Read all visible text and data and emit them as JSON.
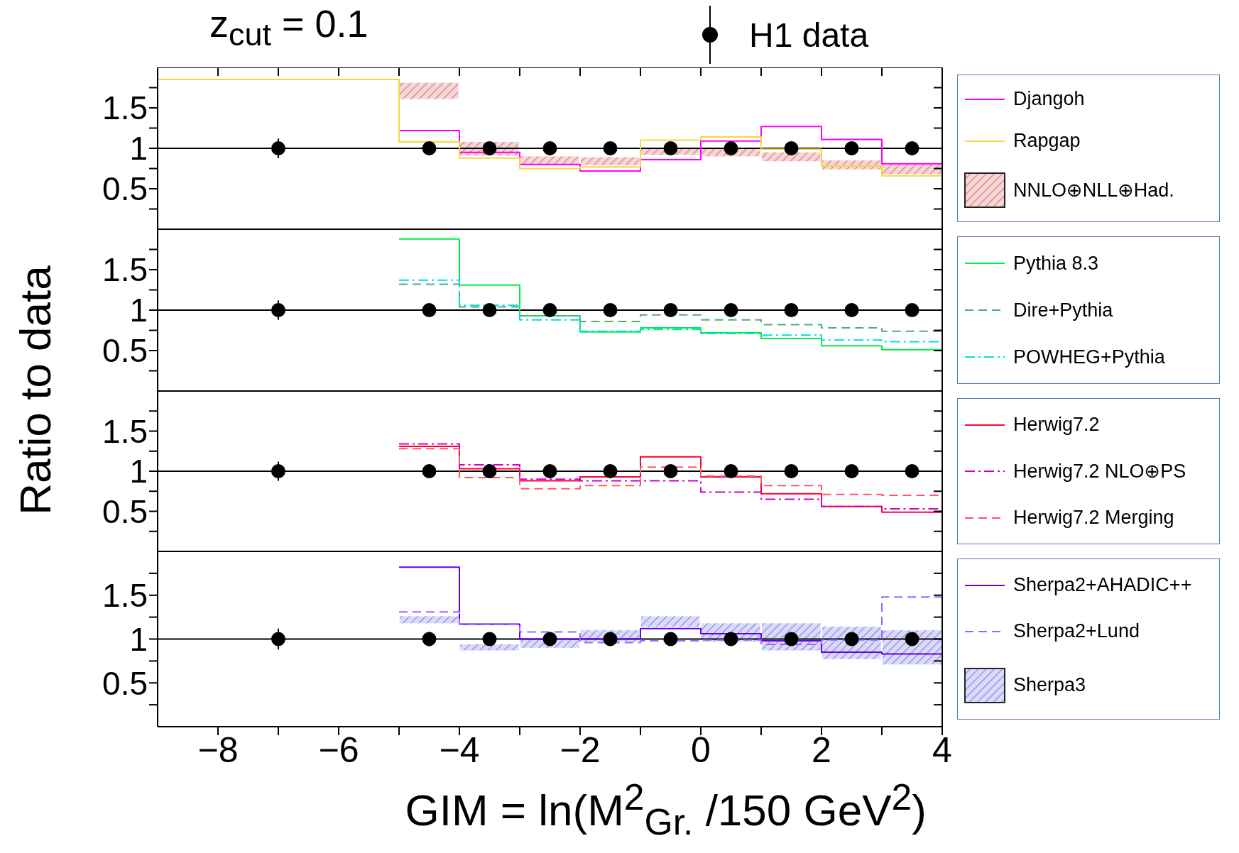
{
  "chart_data": [
    {
      "type": "step",
      "title": "z$_{cut}$ = 0.1",
      "ylabel": "Ratio to data",
      "xlim": [
        -9,
        4
      ],
      "ylim": [
        0,
        2
      ],
      "xticks": [
        -8,
        {
          "value": -7,
          "label": null
        },
        -6,
        {
          "value": -5,
          "label": null
        },
        -4,
        {
          "value": -3,
          "label": null
        },
        -2,
        {
          "value": -1,
          "label": null
        },
        0,
        {
          "value": 1,
          "label": null
        },
        2,
        {
          "value": 3,
          "label": null
        },
        4
      ],
      "yticks": [
        {
          "value": 0.25,
          "label": null
        },
        0.5,
        {
          "value": 0.75,
          "label": null
        },
        1,
        {
          "value": 1.25,
          "label": null
        },
        1.5,
        {
          "value": 1.75,
          "label": null
        }
      ],
      "tick_labels": "y",
      "legend": "right",
      "ref_lines": [
        {
          "axis": "y",
          "value": 1,
          "color": "#000000"
        }
      ],
      "series": [
        {
          "name": "Djangoh",
          "color": "#ff00ff",
          "x": [
            -5,
            -4,
            -3,
            -2,
            -1,
            0,
            1,
            2,
            3,
            4
          ],
          "values": [
            1.22,
            0.95,
            0.8,
            0.72,
            0.86,
            1.09,
            1.27,
            1.11,
            0.81,
            0.81
          ]
        },
        {
          "name": "Rapgap",
          "color": "#f5d742",
          "x": [
            -9,
            -5,
            -4,
            -3,
            -2,
            -1,
            0,
            1,
            2,
            3,
            4
          ],
          "values": [
            1.85,
            1.08,
            0.88,
            0.75,
            0.77,
            1.1,
            1.14,
            0.99,
            0.78,
            0.66,
            0.66
          ]
        },
        {
          "name": "NNLO⊕NLL⊕Had.",
          "type": "bar",
          "color": "#e07a7a",
          "x": [
            -4.5,
            -3.5,
            -2.5,
            -1.5,
            -0.5,
            0.5,
            1.5,
            2.5,
            3.5
          ],
          "base": [
            1.61,
            0.91,
            0.79,
            0.79,
            0.92,
            0.9,
            0.84,
            0.74,
            0.68
          ],
          "values": [
            0.2,
            0.17,
            0.11,
            0.1,
            0.08,
            0.09,
            0.11,
            0.11,
            0.13
          ]
        },
        {
          "name": "H1 data",
          "type": "scatter",
          "marker": "circle",
          "color": "#000000",
          "x": [
            -7,
            -4.5,
            -3.5,
            -2.5,
            -1.5,
            -0.5,
            0.5,
            1.5,
            2.5,
            3.5
          ],
          "values": [
            1,
            1,
            1,
            1,
            1,
            1,
            1,
            1,
            1,
            1
          ],
          "errors": [
            0.12,
            0.08,
            null,
            null,
            null,
            null,
            null,
            null,
            null,
            null
          ]
        }
      ]
    },
    {
      "type": "step",
      "xlim": [
        -9,
        4
      ],
      "ylim": [
        0,
        2
      ],
      "xticks": [
        -8,
        {
          "value": -7,
          "label": null
        },
        -6,
        {
          "value": -5,
          "label": null
        },
        -4,
        {
          "value": -3,
          "label": null
        },
        -2,
        {
          "value": -1,
          "label": null
        },
        0,
        {
          "value": 1,
          "label": null
        },
        2,
        {
          "value": 3,
          "label": null
        },
        4
      ],
      "yticks": [
        {
          "value": 0.25,
          "label": null
        },
        0.5,
        {
          "value": 0.75,
          "label": null
        },
        1,
        {
          "value": 1.25,
          "label": null
        },
        1.5,
        {
          "value": 1.75,
          "label": null
        }
      ],
      "tick_labels": "y",
      "legend": "right",
      "ref_lines": [
        {
          "axis": "y",
          "value": 1,
          "color": "#000000"
        }
      ],
      "series": [
        {
          "name": "Pythia 8.3",
          "color": "#00ee44",
          "x": [
            -5,
            -4,
            -3,
            -2,
            -1,
            0,
            1,
            2,
            3,
            4
          ],
          "values": [
            1.88,
            1.31,
            0.93,
            0.73,
            0.78,
            0.72,
            0.65,
            0.56,
            0.51,
            0.51
          ]
        },
        {
          "name": "Dire+Pythia",
          "color": "#55aa77",
          "line_style": "dashed",
          "x": [
            -5,
            -4,
            -3,
            -2,
            -1,
            0,
            1,
            2,
            3,
            4
          ],
          "values": [
            1.32,
            1.04,
            0.93,
            0.86,
            0.94,
            0.88,
            0.82,
            0.78,
            0.74,
            0.74
          ]
        },
        {
          "name": "POWHEG+Pythia",
          "color": "#00dddd",
          "line_style": "dashdot",
          "x": [
            -5,
            -4,
            -3,
            -2,
            -1,
            0,
            1,
            2,
            3,
            4
          ],
          "values": [
            1.37,
            1.06,
            0.88,
            0.74,
            0.76,
            0.71,
            0.69,
            0.63,
            0.61,
            0.61
          ]
        },
        {
          "type": "scatter",
          "marker": "circle",
          "color": "#000000",
          "x": [
            -7,
            -4.5,
            -3.5,
            -2.5,
            -1.5,
            -0.5,
            0.5,
            1.5,
            2.5,
            3.5
          ],
          "values": [
            1,
            1,
            1,
            1,
            1,
            1,
            1,
            1,
            1,
            1
          ],
          "errors": [
            0.12,
            0.08,
            null,
            null,
            null,
            null,
            null,
            null,
            null,
            null
          ]
        }
      ]
    },
    {
      "type": "step",
      "xlim": [
        -9,
        4
      ],
      "ylim": [
        0,
        2
      ],
      "xticks": [
        -8,
        {
          "value": -7,
          "label": null
        },
        -6,
        {
          "value": -5,
          "label": null
        },
        -4,
        {
          "value": -3,
          "label": null
        },
        -2,
        {
          "value": -1,
          "label": null
        },
        0,
        {
          "value": 1,
          "label": null
        },
        2,
        {
          "value": 3,
          "label": null
        },
        4
      ],
      "yticks": [
        {
          "value": 0.25,
          "label": null
        },
        0.5,
        {
          "value": 0.75,
          "label": null
        },
        1,
        {
          "value": 1.25,
          "label": null
        },
        1.5,
        {
          "value": 1.75,
          "label": null
        }
      ],
      "tick_labels": "y",
      "legend": "right",
      "ref_lines": [
        {
          "axis": "y",
          "value": 1,
          "color": "#000000"
        }
      ],
      "series": [
        {
          "name": "Herwig7.2",
          "color": "#ff0033",
          "x": [
            -5,
            -4,
            -3,
            -2,
            -1,
            0,
            1,
            2,
            3,
            4
          ],
          "values": [
            1.31,
            1.03,
            0.88,
            0.93,
            1.18,
            0.93,
            0.72,
            0.56,
            0.49,
            0.49
          ]
        },
        {
          "name": "Herwig7.2 NLO⊕PS",
          "color": "#cc00cc",
          "line_style": "dashdot",
          "x": [
            -5,
            -4,
            -3,
            -2,
            -1,
            0,
            1,
            2,
            3,
            4
          ],
          "values": [
            1.34,
            1.08,
            0.9,
            0.88,
            0.88,
            0.74,
            0.65,
            0.56,
            0.53,
            0.53
          ]
        },
        {
          "name": "Herwig7.2 Merging",
          "color": "#ff5566",
          "line_style": "dashed",
          "x": [
            -5,
            -4,
            -3,
            -2,
            -1,
            0,
            1,
            2,
            3,
            4
          ],
          "values": [
            1.28,
            0.92,
            0.78,
            0.82,
            1.05,
            0.94,
            0.82,
            0.71,
            0.7,
            0.7
          ]
        },
        {
          "type": "scatter",
          "marker": "circle",
          "color": "#000000",
          "x": [
            -7,
            -4.5,
            -3.5,
            -2.5,
            -1.5,
            -0.5,
            0.5,
            1.5,
            2.5,
            3.5
          ],
          "values": [
            1,
            1,
            1,
            1,
            1,
            1,
            1,
            1,
            1,
            1
          ],
          "errors": [
            0.12,
            0.08,
            null,
            null,
            null,
            null,
            null,
            null,
            null,
            null
          ]
        }
      ]
    },
    {
      "type": "step",
      "xlabel": "GIM = ln(M$^{2}$$_{Gr.}$ /150 GeV$^{2}$)",
      "xlim": [
        -9,
        4
      ],
      "ylim": [
        0,
        2
      ],
      "xticks": [
        -8,
        {
          "value": -7,
          "label": null
        },
        -6,
        {
          "value": -5,
          "label": null
        },
        -4,
        {
          "value": -3,
          "label": null
        },
        -2,
        {
          "value": -1,
          "label": null
        },
        0,
        {
          "value": 1,
          "label": null
        },
        2,
        {
          "value": 3,
          "label": null
        },
        4
      ],
      "yticks": [
        {
          "value": 0.25,
          "label": null
        },
        0.5,
        {
          "value": 0.75,
          "label": null
        },
        1,
        {
          "value": 1.25,
          "label": null
        },
        1.5,
        {
          "value": 1.75,
          "label": null
        }
      ],
      "legend": "right",
      "ref_lines": [
        {
          "axis": "y",
          "value": 1,
          "color": "#000000"
        }
      ],
      "series": [
        {
          "name": "Sherpa2+AHADIC++",
          "color": "#6600ee",
          "x": [
            -5,
            -4,
            -3,
            -2,
            -1,
            0,
            1,
            2,
            3,
            4
          ],
          "values": [
            1.82,
            1.17,
            1.0,
            1.0,
            1.12,
            1.06,
            0.98,
            0.85,
            0.83,
            0.83
          ]
        },
        {
          "name": "Sherpa2+Lund",
          "color": "#9966ff",
          "line_style": "dashed",
          "x": [
            -5,
            -4,
            -3,
            -2,
            -1,
            0,
            1,
            2,
            3,
            4
          ],
          "values": [
            1.31,
            1.17,
            1.08,
            0.96,
            0.98,
            0.99,
            0.94,
            0.99,
            1.48,
            1.48
          ]
        },
        {
          "name": "Sherpa3",
          "type": "bar",
          "color": "#8888ee",
          "x": [
            -4.5,
            -3.5,
            -2.5,
            -1.5,
            -0.5,
            0.5,
            1.5,
            2.5,
            3.5
          ],
          "base": [
            1.18,
            0.87,
            0.9,
            0.97,
            1.14,
            0.97,
            0.87,
            0.77,
            0.71
          ],
          "values": [
            0.08,
            0.07,
            0.1,
            0.13,
            0.12,
            0.21,
            0.31,
            0.37,
            0.39
          ]
        },
        {
          "type": "scatter",
          "marker": "circle",
          "color": "#000000",
          "x": [
            -7,
            -4.5,
            -3.5,
            -2.5,
            -1.5,
            -0.5,
            0.5,
            1.5,
            2.5,
            3.5
          ],
          "values": [
            1,
            1,
            1,
            1,
            1,
            1,
            1,
            1,
            1,
            1
          ],
          "errors": [
            0.12,
            0.08,
            null,
            null,
            null,
            null,
            null,
            null,
            null,
            null
          ]
        }
      ]
    }
  ]
}
